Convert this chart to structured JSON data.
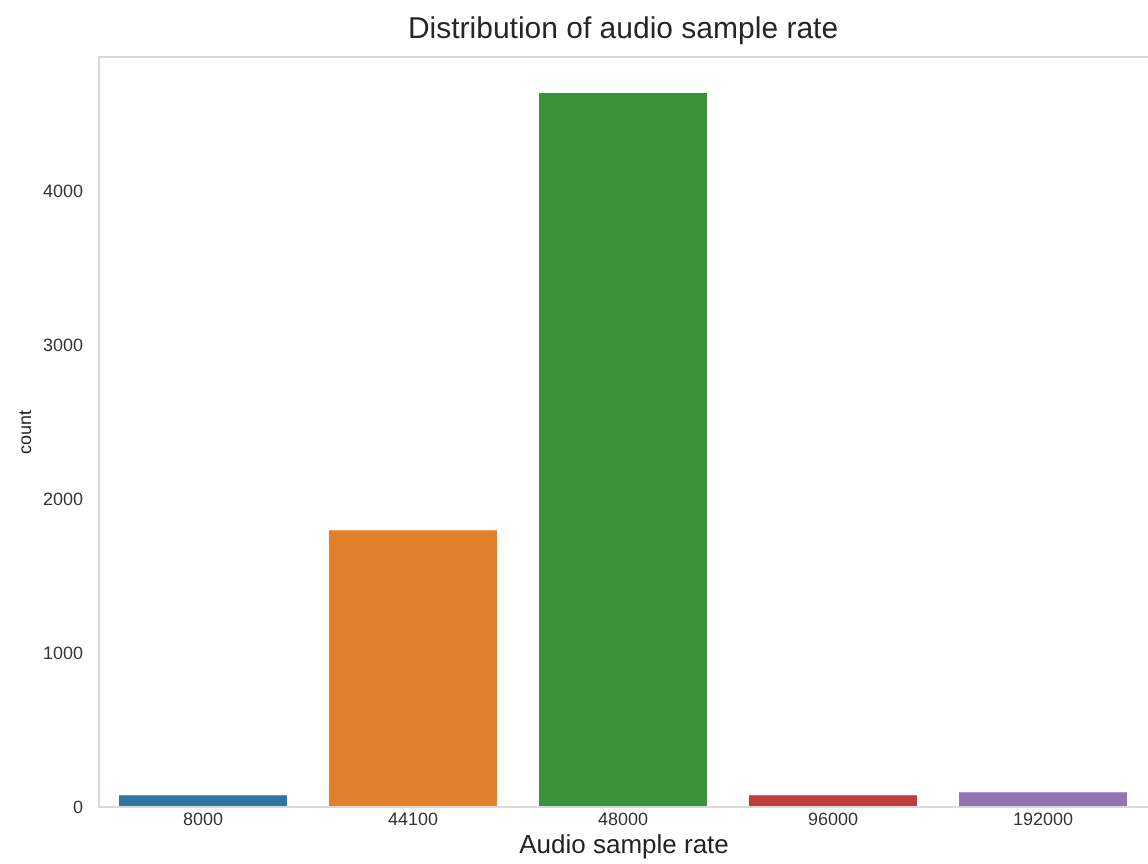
{
  "chart_data": {
    "type": "bar",
    "title": "Distribution of audio sample rate",
    "xlabel": "Audio sample rate",
    "ylabel": "count",
    "categories": [
      "8000",
      "44100",
      "48000",
      "96000",
      "192000"
    ],
    "values": [
      70,
      1790,
      4630,
      70,
      90
    ],
    "colors": [
      "#3274a1",
      "#e1812c",
      "#3a923a",
      "#c03d3e",
      "#9372b2"
    ],
    "ylim": [
      0,
      4870
    ],
    "yticks": [
      0,
      1000,
      2000,
      3000,
      4000
    ],
    "grid": false
  }
}
